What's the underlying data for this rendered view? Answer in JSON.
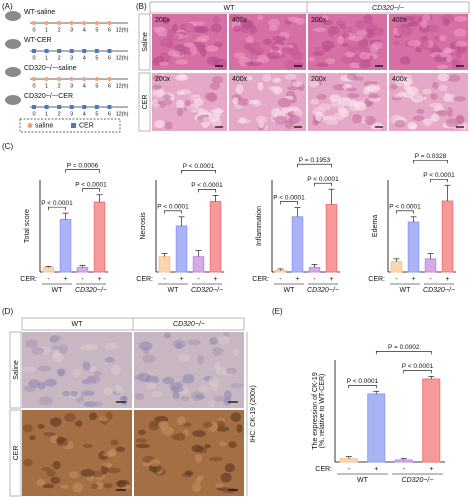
{
  "panel_a": {
    "label": "(A)",
    "groups": [
      "WT-saline",
      "WT-CER",
      "CD320−/−-saline",
      "CD320−/−-CER"
    ],
    "timeline_labels": [
      "0",
      "1",
      "2",
      "3",
      "4",
      "5",
      "6",
      "12(h)"
    ],
    "legend": [
      "saline",
      "CER"
    ]
  },
  "panel_b": {
    "label": "(B)",
    "columns": [
      "WT",
      "CD320−/−"
    ],
    "rows": [
      "Saline",
      "CER"
    ],
    "magnifications": [
      "200x",
      "400x",
      "200x",
      "400x"
    ]
  },
  "panel_c": {
    "label": "(C)",
    "cer_label": "CER:",
    "groups": [
      "WT",
      "CD320−/−"
    ],
    "categories": [
      "-",
      "+",
      "-",
      "+"
    ],
    "colors": [
      "#f9c596",
      "#8e9bf2",
      "#c58de0",
      "#f27878"
    ],
    "charts": [
      {
        "type": "bar",
        "ylabel": "Total score",
        "values": [
          0.5,
          5.7,
          0.5,
          7.6
        ],
        "errors": [
          0.1,
          0.7,
          0.2,
          0.8
        ],
        "ylim": [
          0,
          10
        ],
        "comparisons": [
          "P < 0.0001",
          "P < 0.0001",
          "P = 0.0006"
        ]
      },
      {
        "type": "bar",
        "ylabel": "Necrosis",
        "values": [
          0.5,
          1.5,
          0.5,
          2.3
        ],
        "errors": [
          0.1,
          0.3,
          0.2,
          0.2
        ],
        "ylim": [
          0,
          3
        ],
        "comparisons": [
          "P < 0.0001",
          "P < 0.0001",
          "P < 0.0001"
        ]
      },
      {
        "type": "bar",
        "ylabel": "Inflammation",
        "values": [
          0.05,
          1.8,
          0.15,
          2.2
        ],
        "errors": [
          0.05,
          0.3,
          0.1,
          0.5
        ],
        "ylim": [
          0,
          3
        ],
        "comparisons": [
          "P < 0.0001",
          "P < 0.0001",
          "P = 0.1953"
        ]
      },
      {
        "type": "bar",
        "ylabel": "Edema",
        "values": [
          0.4,
          1.9,
          0.5,
          2.7
        ],
        "errors": [
          0.1,
          0.2,
          0.2,
          0.6
        ],
        "ylim": [
          0,
          3.5
        ],
        "comparisons": [
          "P < 0.0001",
          "P < 0.0001",
          "P = 0.0328"
        ]
      }
    ]
  },
  "panel_d": {
    "label": "(D)",
    "columns": [
      "WT",
      "CD320−/−"
    ],
    "rows": [
      "Saline",
      "CER"
    ],
    "side_label": "IHC: CK-19 (200x)"
  },
  "panel_e": {
    "label": "(E)",
    "cer_label": "CER:",
    "groups": [
      "WT",
      "CD320−/−"
    ],
    "categories": [
      "-",
      "+",
      "-",
      "+"
    ],
    "colors": [
      "#f9c596",
      "#8e9bf2",
      "#c58de0",
      "#f27878"
    ],
    "chart": {
      "type": "bar",
      "ylabel": [
        "The expression of CK-19",
        "(%, relative to WT-CER)"
      ],
      "values": [
        5,
        100,
        3,
        122
      ],
      "errors": [
        3,
        4,
        2,
        4
      ],
      "ylim": [
        0,
        150
      ],
      "comparisons": [
        "P < 0.0001",
        "P < 0.0001",
        "P = 0.0002"
      ]
    }
  }
}
